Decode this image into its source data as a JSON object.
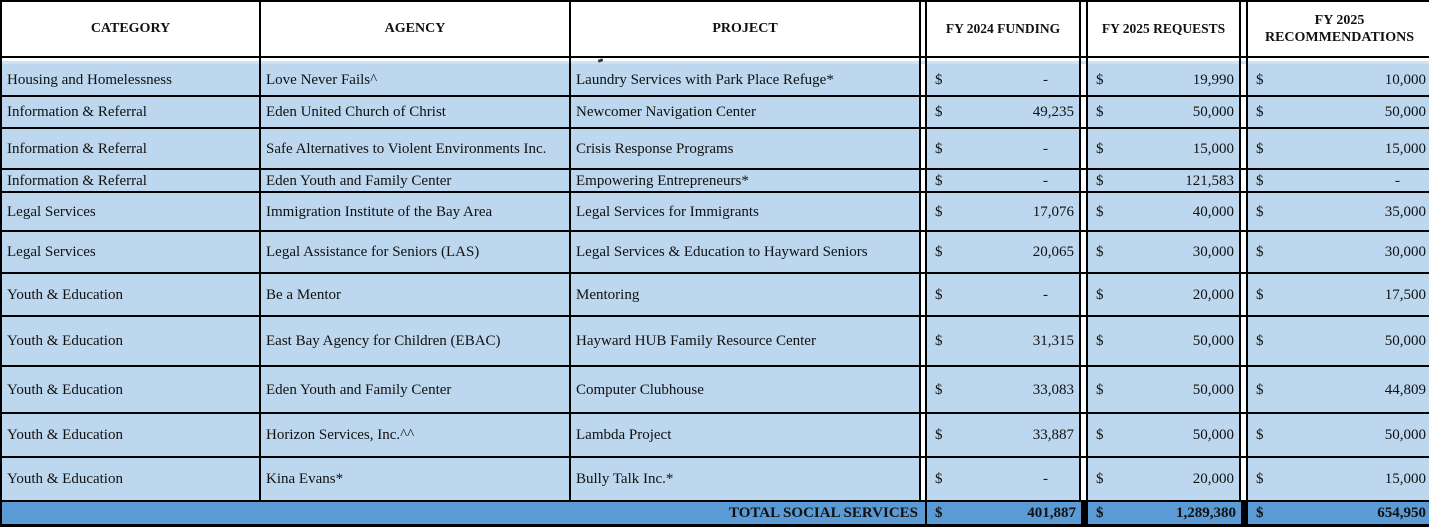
{
  "table": {
    "currency_symbol": "$",
    "columns": [
      "CATEGORY",
      "AGENCY",
      "PROJECT",
      "FY 2024 FUNDING",
      "FY 2025 REQUESTS",
      "FY 2025 RECOMMENDATIONS"
    ],
    "rows": [
      {
        "category": "Housing and Homelessness",
        "agency": "Love Never Fails^",
        "project": "Laundry Services with Park Place Refuge*",
        "fy2024_funding": "-",
        "fy2025_request": "19,990",
        "fy2025_recommendation": "10,000"
      },
      {
        "category": "Information & Referral",
        "agency": "Eden United Church of Christ",
        "project": "Newcomer Navigation Center",
        "fy2024_funding": "49,235",
        "fy2025_request": "50,000",
        "fy2025_recommendation": "50,000"
      },
      {
        "category": "Information & Referral",
        "agency": "Safe Alternatives to Violent Environments Inc.",
        "project": "Crisis Response Programs",
        "fy2024_funding": "-",
        "fy2025_request": "15,000",
        "fy2025_recommendation": "15,000"
      },
      {
        "category": "Information & Referral",
        "agency": "Eden Youth and Family Center",
        "project": "Empowering Entrepreneurs*",
        "fy2024_funding": "-",
        "fy2025_request": "121,583",
        "fy2025_recommendation": "-"
      },
      {
        "category": "Legal Services",
        "agency": "Immigration Institute of the Bay Area",
        "project": "Legal Services for Immigrants",
        "fy2024_funding": "17,076",
        "fy2025_request": "40,000",
        "fy2025_recommendation": "35,000"
      },
      {
        "category": "Legal Services",
        "agency": "Legal Assistance for Seniors (LAS)",
        "project": "Legal Services & Education to Hayward Seniors",
        "fy2024_funding": "20,065",
        "fy2025_request": "30,000",
        "fy2025_recommendation": "30,000"
      },
      {
        "category": "Youth & Education",
        "agency": "Be a Mentor",
        "project": "Mentoring",
        "fy2024_funding": "-",
        "fy2025_request": "20,000",
        "fy2025_recommendation": "17,500"
      },
      {
        "category": "Youth & Education",
        "agency": "East Bay Agency for Children (EBAC)",
        "project": "Hayward HUB Family Resource Center",
        "fy2024_funding": "31,315",
        "fy2025_request": "50,000",
        "fy2025_recommendation": "50,000"
      },
      {
        "category": "Youth & Education",
        "agency": "Eden Youth and Family Center",
        "project": "Computer Clubhouse",
        "fy2024_funding": "33,083",
        "fy2025_request": "50,000",
        "fy2025_recommendation": "44,809"
      },
      {
        "category": "Youth & Education",
        "agency": "Horizon Services, Inc.^^",
        "project": "Lambda Project",
        "fy2024_funding": "33,887",
        "fy2025_request": "50,000",
        "fy2025_recommendation": "50,000"
      },
      {
        "category": "Youth & Education",
        "agency": "Kina Evans*",
        "project": "Bully Talk Inc.*",
        "fy2024_funding": "-",
        "fy2025_request": "20,000",
        "fy2025_recommendation": "15,000"
      }
    ],
    "total": {
      "label": "TOTAL SOCIAL SERVICES",
      "fy2024_funding": "401,887",
      "fy2025_request": "1,289,380",
      "fy2025_recommendation": "654,950"
    },
    "colors": {
      "row_fill": "#bdd7ee",
      "total_fill": "#5b9bd5",
      "header_fill": "#ffffff",
      "border": "#000000"
    }
  }
}
